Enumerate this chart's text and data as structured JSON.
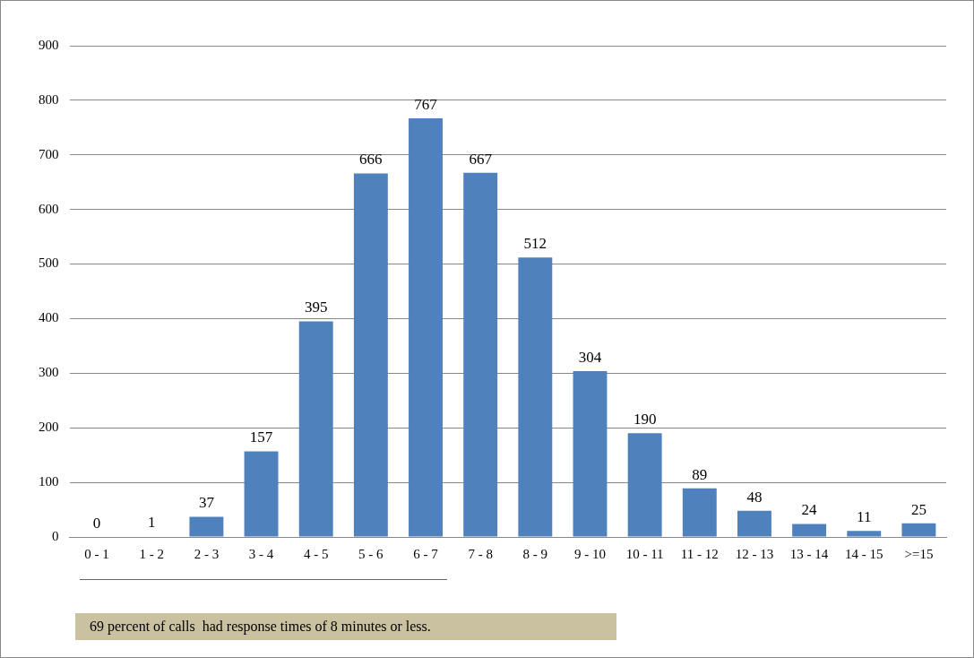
{
  "chart_data": {
    "type": "bar",
    "categories": [
      "0 - 1",
      "1 - 2",
      "2 - 3",
      "3 - 4",
      "4 - 5",
      "5 - 6",
      "6 - 7",
      "7 - 8",
      "8 - 9",
      "9 - 10",
      "10 - 11",
      "11 - 12",
      "12 - 13",
      "13 - 14",
      "14 - 15",
      ">=15"
    ],
    "values": [
      0,
      1,
      37,
      157,
      395,
      666,
      767,
      667,
      512,
      304,
      190,
      89,
      48,
      24,
      11,
      25
    ],
    "color": "#4f81bd",
    "ylim": [
      0,
      900
    ],
    "yticks": [
      0,
      100,
      200,
      300,
      400,
      500,
      600,
      700,
      800,
      900
    ],
    "grid": "y",
    "legend": false,
    "data_labels": true,
    "annotations": [
      "69 percent of calls  had response times of 8 minutes or less."
    ]
  }
}
